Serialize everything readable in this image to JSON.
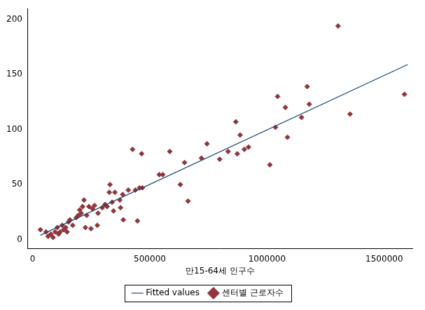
{
  "chart_data": {
    "type": "scatter",
    "x_label": "만15-64세 인구수",
    "xlim": [
      -20000,
      1620000
    ],
    "xticks": [
      0,
      500000,
      1000000,
      1500000
    ],
    "ylim": [
      -8,
      210
    ],
    "yticks": [
      0,
      50,
      100,
      150,
      200
    ],
    "grid": false,
    "legend": "bottom",
    "series": [
      {
        "name": "Fitted values",
        "type": "line",
        "color": "#1a476f",
        "line_style": "solid",
        "x": [
          33000,
          1600000
        ],
        "values": [
          4,
          159
        ]
      },
      {
        "name": "센터별 근로자수",
        "type": "scatter",
        "color": "#90353b",
        "marker": "diamond",
        "x": [
          33000,
          57000,
          66000,
          78000,
          87000,
          96000,
          105000,
          111000,
          117000,
          126000,
          132000,
          141000,
          147000,
          153000,
          159000,
          171000,
          186000,
          195000,
          201000,
          207000,
          213000,
          219000,
          225000,
          231000,
          240000,
          249000,
          255000,
          264000,
          276000,
          279000,
          297000,
          309000,
          318000,
          327000,
          330000,
          339000,
          345000,
          351000,
          372000,
          375000,
          384000,
          387000,
          408000,
          426000,
          438000,
          447000,
          456000,
          465000,
          468000,
          540000,
          555000,
          585000,
          630000,
          648000,
          663000,
          720000,
          744000,
          798000,
          834000,
          867000,
          873000,
          885000,
          903000,
          921000,
          1012000,
          1036000,
          1045000,
          1078000,
          1087000,
          1147000,
          1171000,
          1180000,
          1303000,
          1354000,
          1586000
        ],
        "values": [
          9,
          7,
          3,
          5,
          2,
          7,
          11,
          5,
          7,
          13,
          9,
          11,
          7,
          16,
          18,
          13,
          20,
          22,
          27,
          24,
          30,
          36,
          11,
          22,
          30,
          10,
          28,
          31,
          13,
          24,
          29,
          32,
          30,
          43,
          50,
          34,
          26,
          43,
          36,
          29,
          41,
          18,
          45,
          82,
          45,
          17,
          47,
          78,
          47,
          59,
          59,
          80,
          50,
          70,
          35,
          74,
          87,
          73,
          80,
          107,
          78,
          95,
          82,
          84,
          68,
          102,
          130,
          120,
          93,
          111,
          139,
          123,
          194,
          114,
          132
        ]
      }
    ]
  }
}
